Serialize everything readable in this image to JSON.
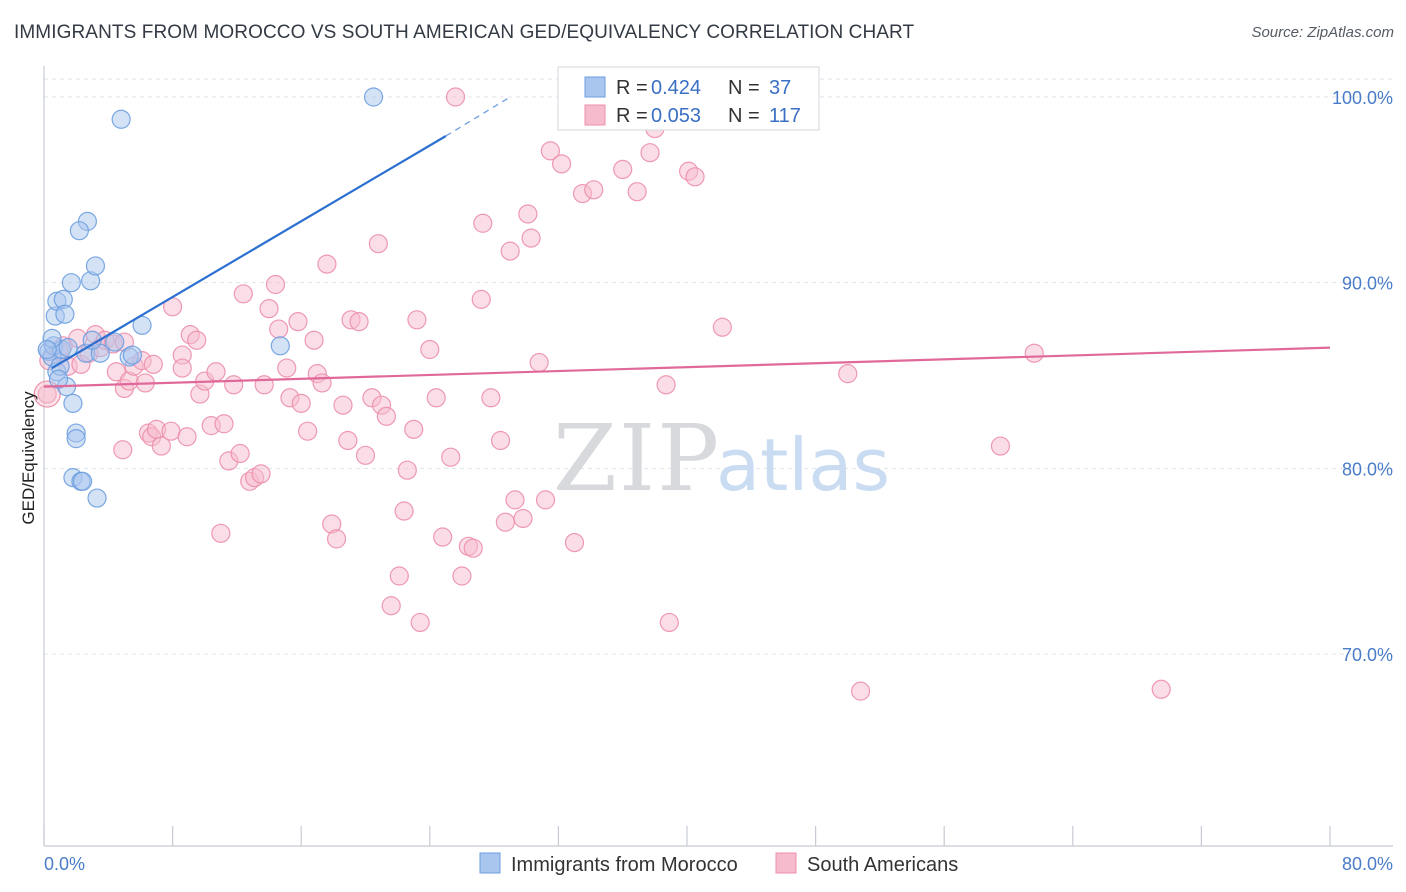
{
  "title": "IMMIGRANTS FROM MOROCCO VS SOUTH AMERICAN GED/EQUIVALENCY CORRELATION CHART",
  "source": "Source: ZipAtlas.com",
  "watermark": {
    "zip": "ZIP",
    "atlas": "atlas"
  },
  "colors": {
    "blue_fill": "#a9c6ee",
    "blue_stroke": "#6d9fe0",
    "blue_line": "#2b6fd0",
    "pink_fill": "#f6bccd",
    "pink_stroke": "#ec8fab",
    "pink_line": "#e0699a",
    "grid": "#dfe3ea",
    "tick_text": "#4a7cc7"
  },
  "legend": {
    "r_label": "R =",
    "n_label": "N =",
    "entries": [
      {
        "r": "0.424",
        "n": "37",
        "color": "blue"
      },
      {
        "r": "0.053",
        "n": "117",
        "color": "pink"
      }
    ]
  },
  "chart_data": {
    "type": "scatter",
    "xlabel": "",
    "ylabel": "GED/Equivalency",
    "xlim": [
      0,
      80
    ],
    "ylim": [
      60,
      102
    ],
    "x_tick_labels": [
      {
        "value": 0,
        "label": "0.0%"
      },
      {
        "value": 80,
        "label": "80.0%"
      }
    ],
    "y_tick_labels": [
      {
        "value": 70,
        "label": "70.0%"
      },
      {
        "value": 80,
        "label": "80.0%"
      },
      {
        "value": 90,
        "label": "90.0%"
      },
      {
        "value": 100,
        "label": "100.0%"
      }
    ],
    "x_minor_ticks": [
      0,
      8,
      16,
      24,
      32,
      40,
      48,
      56,
      64,
      72,
      80
    ],
    "grid": true,
    "series": [
      {
        "name": "Immigrants from Morocco",
        "color": "blue",
        "trend": [
          [
            0.5,
            85.4
          ],
          [
            25.0,
            97.9
          ]
        ],
        "trend_dashed": [
          [
            25.0,
            97.9
          ],
          [
            29.0,
            100.0
          ]
        ],
        "points": [
          [
            0.3,
            86.3
          ],
          [
            0.5,
            86.0
          ],
          [
            0.6,
            86.6
          ],
          [
            0.8,
            85.2
          ],
          [
            1.0,
            85.5
          ],
          [
            0.7,
            88.2
          ],
          [
            0.8,
            89.0
          ],
          [
            1.2,
            89.1
          ],
          [
            1.3,
            88.3
          ],
          [
            1.4,
            84.4
          ],
          [
            1.7,
            90.0
          ],
          [
            1.8,
            83.5
          ],
          [
            2.0,
            81.9
          ],
          [
            2.0,
            81.6
          ],
          [
            1.8,
            79.5
          ],
          [
            2.3,
            79.3
          ],
          [
            2.4,
            79.3
          ],
          [
            2.6,
            86.2
          ],
          [
            2.7,
            93.3
          ],
          [
            2.9,
            90.1
          ],
          [
            3.2,
            90.9
          ],
          [
            3.3,
            78.4
          ],
          [
            3.5,
            86.2
          ],
          [
            4.4,
            86.8
          ],
          [
            4.8,
            98.8
          ],
          [
            5.3,
            86.0
          ],
          [
            5.5,
            86.1
          ],
          [
            6.1,
            87.7
          ],
          [
            14.7,
            86.6
          ],
          [
            20.5,
            100.0
          ],
          [
            2.2,
            92.8
          ],
          [
            1.1,
            86.4
          ],
          [
            0.9,
            84.8
          ],
          [
            0.5,
            87.0
          ],
          [
            1.5,
            86.5
          ],
          [
            3.0,
            86.9
          ],
          [
            0.2,
            86.4
          ]
        ]
      },
      {
        "name": "South Americans",
        "color": "pink",
        "trend": [
          [
            0.0,
            84.4
          ],
          [
            80.0,
            86.5
          ]
        ],
        "points": [
          [
            0.2,
            84.0
          ],
          [
            0.3,
            85.8
          ],
          [
            1.0,
            86.3
          ],
          [
            1.2,
            86.6
          ],
          [
            1.5,
            85.5
          ],
          [
            2.1,
            87.0
          ],
          [
            2.3,
            85.6
          ],
          [
            2.8,
            86.2
          ],
          [
            3.2,
            87.2
          ],
          [
            3.5,
            86.5
          ],
          [
            3.8,
            86.9
          ],
          [
            4.3,
            86.7
          ],
          [
            4.5,
            85.2
          ],
          [
            4.9,
            81.0
          ],
          [
            5.0,
            84.3
          ],
          [
            5.3,
            84.7
          ],
          [
            5.6,
            85.5
          ],
          [
            6.1,
            85.8
          ],
          [
            6.3,
            84.6
          ],
          [
            6.5,
            81.9
          ],
          [
            6.7,
            81.7
          ],
          [
            6.8,
            85.6
          ],
          [
            7.0,
            82.1
          ],
          [
            7.3,
            81.2
          ],
          [
            7.9,
            82.0
          ],
          [
            8.0,
            88.7
          ],
          [
            8.6,
            86.1
          ],
          [
            8.6,
            85.4
          ],
          [
            8.9,
            81.7
          ],
          [
            9.1,
            87.2
          ],
          [
            9.5,
            86.9
          ],
          [
            9.7,
            84.0
          ],
          [
            10.0,
            84.7
          ],
          [
            10.4,
            82.3
          ],
          [
            10.7,
            85.2
          ],
          [
            11.0,
            76.5
          ],
          [
            11.2,
            82.4
          ],
          [
            11.5,
            80.4
          ],
          [
            11.8,
            84.5
          ],
          [
            12.2,
            80.8
          ],
          [
            12.4,
            89.4
          ],
          [
            12.8,
            79.3
          ],
          [
            13.1,
            79.5
          ],
          [
            13.5,
            79.7
          ],
          [
            13.7,
            84.5
          ],
          [
            14.0,
            88.6
          ],
          [
            14.4,
            89.9
          ],
          [
            14.6,
            87.5
          ],
          [
            15.1,
            85.4
          ],
          [
            15.3,
            83.8
          ],
          [
            15.8,
            87.9
          ],
          [
            16.0,
            83.5
          ],
          [
            16.4,
            82.0
          ],
          [
            16.8,
            86.9
          ],
          [
            17.0,
            85.1
          ],
          [
            17.3,
            84.6
          ],
          [
            17.6,
            91.0
          ],
          [
            17.9,
            77.0
          ],
          [
            18.2,
            76.2
          ],
          [
            18.6,
            83.4
          ],
          [
            18.9,
            81.5
          ],
          [
            19.1,
            88.0
          ],
          [
            19.6,
            87.9
          ],
          [
            20.0,
            80.7
          ],
          [
            20.4,
            83.8
          ],
          [
            20.8,
            92.1
          ],
          [
            21.0,
            83.4
          ],
          [
            21.3,
            82.8
          ],
          [
            21.6,
            72.6
          ],
          [
            22.1,
            74.2
          ],
          [
            22.4,
            77.7
          ],
          [
            22.6,
            79.9
          ],
          [
            23.0,
            82.1
          ],
          [
            23.2,
            88.0
          ],
          [
            23.4,
            71.7
          ],
          [
            24.0,
            86.4
          ],
          [
            24.4,
            83.8
          ],
          [
            24.8,
            76.3
          ],
          [
            25.3,
            80.6
          ],
          [
            25.6,
            100.0
          ],
          [
            26.0,
            74.2
          ],
          [
            26.4,
            75.8
          ],
          [
            26.7,
            75.7
          ],
          [
            27.2,
            89.1
          ],
          [
            27.3,
            93.2
          ],
          [
            27.8,
            83.8
          ],
          [
            28.4,
            81.5
          ],
          [
            28.7,
            77.1
          ],
          [
            29.0,
            91.7
          ],
          [
            29.3,
            78.3
          ],
          [
            29.8,
            77.3
          ],
          [
            30.1,
            93.7
          ],
          [
            30.3,
            92.4
          ],
          [
            30.8,
            85.7
          ],
          [
            31.2,
            78.3
          ],
          [
            31.5,
            97.1
          ],
          [
            32.2,
            96.4
          ],
          [
            33.0,
            76.0
          ],
          [
            33.5,
            94.8
          ],
          [
            34.2,
            95.0
          ],
          [
            34.8,
            100.0
          ],
          [
            36.0,
            96.1
          ],
          [
            36.9,
            94.9
          ],
          [
            37.7,
            97.0
          ],
          [
            38.0,
            98.3
          ],
          [
            38.7,
            84.5
          ],
          [
            38.9,
            71.7
          ],
          [
            40.1,
            96.0
          ],
          [
            40.5,
            95.7
          ],
          [
            42.2,
            87.6
          ],
          [
            41.8,
            100.0
          ],
          [
            50.0,
            85.1
          ],
          [
            50.8,
            68.0
          ],
          [
            59.5,
            81.2
          ],
          [
            61.6,
            86.2
          ],
          [
            69.5,
            68.1
          ],
          [
            5.0,
            86.8
          ]
        ]
      }
    ]
  },
  "bottom_legend": [
    {
      "label": "Immigrants from Morocco",
      "color": "blue"
    },
    {
      "label": "South Americans",
      "color": "pink"
    }
  ]
}
